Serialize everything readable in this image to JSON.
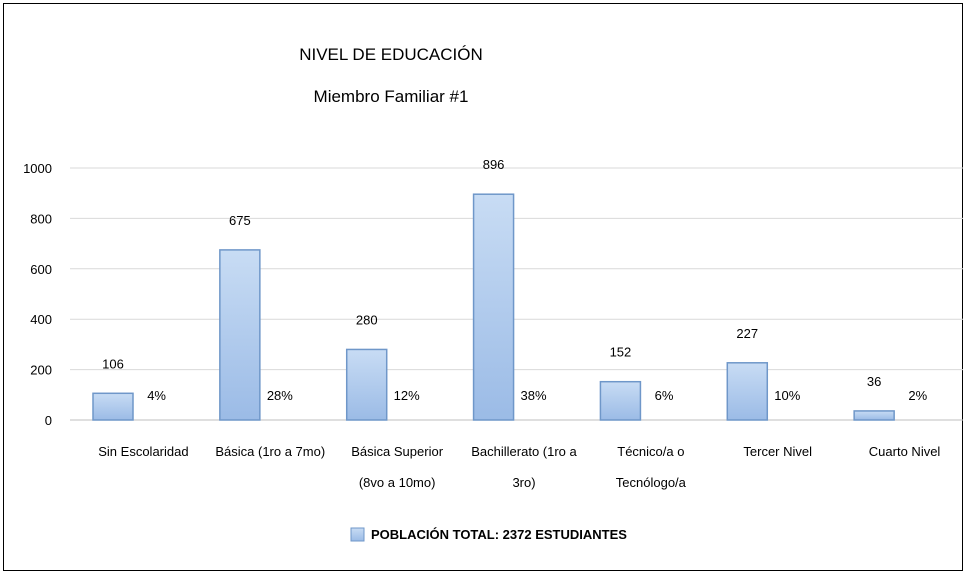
{
  "chart_data": {
    "type": "bar",
    "title": "NIVEL DE EDUCACIÓN",
    "subtitle": "Miembro Familiar #1",
    "categories": [
      [
        "Sin Escolaridad"
      ],
      [
        "Básica (1ro a 7mo)"
      ],
      [
        "Básica Superior",
        "(8vo a 10mo)"
      ],
      [
        "Bachillerato (1ro a",
        "3ro)"
      ],
      [
        "Técnico/a o",
        "Tecnólogo/a"
      ],
      [
        "Tercer Nivel"
      ],
      [
        "Cuarto Nivel"
      ]
    ],
    "values": [
      106,
      675,
      280,
      896,
      152,
      227,
      36
    ],
    "percentages": [
      "4%",
      "28%",
      "12%",
      "38%",
      "6%",
      "10%",
      "2%"
    ],
    "yticks": [
      "0",
      "200",
      "400",
      "600",
      "800",
      "1000"
    ],
    "ylim": [
      0,
      1000
    ],
    "legend": "POBLACIÓN TOTAL: 2372 ESTUDIANTES",
    "colors": {
      "bar_fill": "#a4c2e8",
      "bar_fill_light": "#c8dcf4",
      "bar_stroke": "#6f97c9",
      "grid": "#d9d9d9"
    }
  }
}
